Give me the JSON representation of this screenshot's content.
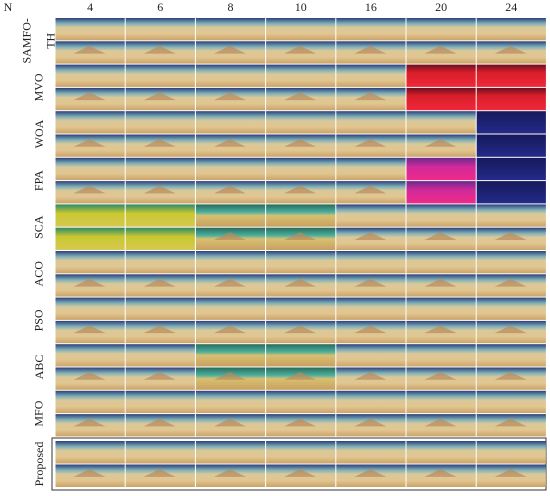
{
  "header": {
    "corner": "N",
    "columns": [
      "4",
      "6",
      "8",
      "10",
      "16",
      "20",
      "24"
    ]
  },
  "rows": [
    {
      "lines": [
        "SAMFO-",
        "TH"
      ]
    },
    {
      "lines": [
        "MVO"
      ]
    },
    {
      "lines": [
        "WOA"
      ]
    },
    {
      "lines": [
        "FPA"
      ]
    },
    {
      "lines": [
        "SCA"
      ]
    },
    {
      "lines": [
        "ACO"
      ]
    },
    {
      "lines": [
        "PSO"
      ]
    },
    {
      "lines": [
        "ABC"
      ]
    },
    {
      "lines": [
        "MFO"
      ]
    },
    {
      "lines": [
        "Proposed"
      ]
    }
  ]
}
